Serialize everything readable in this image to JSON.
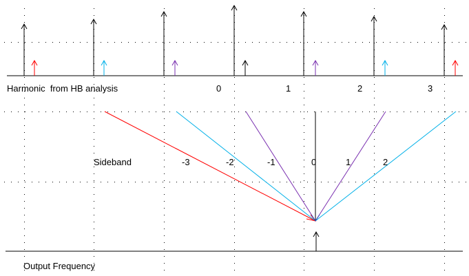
{
  "labels": {
    "harmonic_row": "Harmonic  from HB analysis",
    "sideband_row": "Sideband",
    "output_row": "Output Frequency"
  },
  "harmonic_numbers": [
    "0",
    "1",
    "2",
    "3"
  ],
  "sideband_numbers": [
    "-3",
    "-2",
    "-1",
    "0",
    "1",
    "2"
  ],
  "colors": {
    "harmonic_arrow": "#000000",
    "sideband_red": "#ff0000",
    "sideband_cyan": "#00b0e8",
    "sideband_purple": "#7a30b0",
    "sideband_black": "#000000",
    "grid_dot": "#000000"
  }
}
